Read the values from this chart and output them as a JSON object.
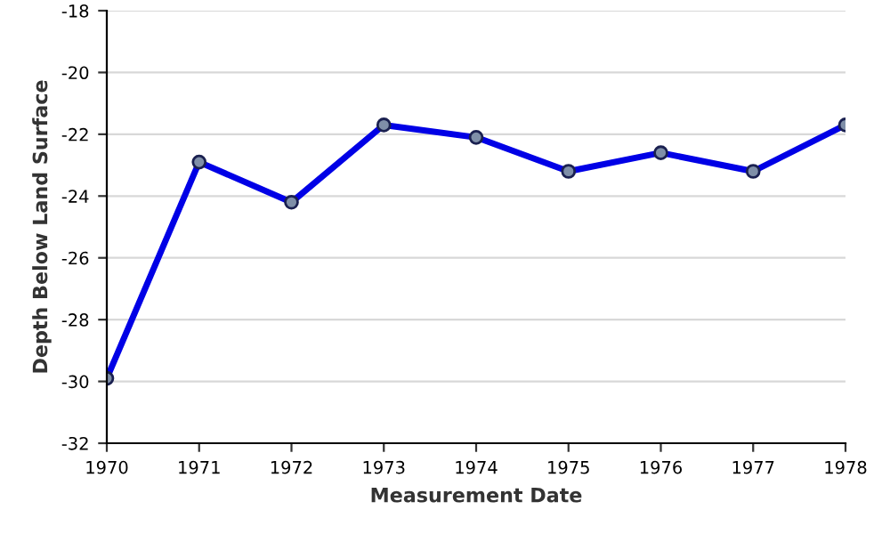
{
  "chart_data": {
    "type": "line",
    "xlabel": "Measurement Date",
    "ylabel": "Depth Below Land Surface",
    "x": [
      1970,
      1971,
      1972,
      1973,
      1974,
      1975,
      1976,
      1977,
      1978
    ],
    "series": [
      {
        "color": "#0000e6",
        "values": [
          -29.9,
          -22.9,
          -24.2,
          -21.7,
          -22.1,
          -23.2,
          -22.6,
          -23.2,
          -21.7
        ]
      }
    ],
    "xlim": [
      1970,
      1978
    ],
    "xticks": [
      1970,
      1971,
      1972,
      1973,
      1974,
      1975,
      1976,
      1977,
      1978
    ],
    "ylim": [
      -32,
      -18
    ],
    "yticks": [
      -32,
      -30,
      -28,
      -26,
      -24,
      -22,
      -20,
      -18
    ],
    "grid": "y",
    "marker": "circle",
    "line_style": "solid"
  }
}
